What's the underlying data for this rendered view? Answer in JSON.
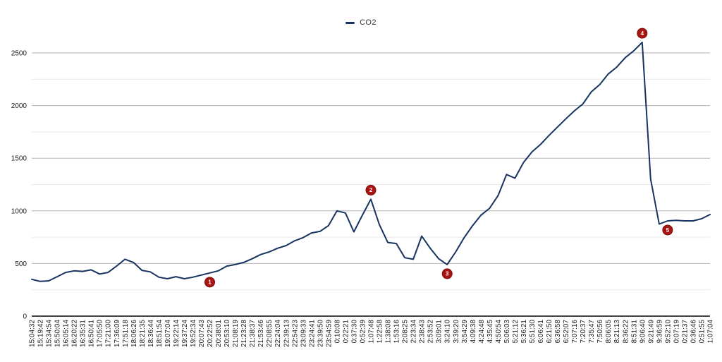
{
  "chart_data": {
    "type": "line",
    "title": "",
    "legend": {
      "position": "top-center",
      "entries": [
        {
          "label": "CO2",
          "color": "#17335f"
        }
      ]
    },
    "x": {
      "label": "",
      "categories": [
        "15:04:32",
        "15:19:42",
        "15:34:54",
        "15:50:04",
        "16:05:14",
        "16:20:22",
        "16:35:31",
        "16:50:41",
        "17:05:50",
        "17:21:00",
        "17:36:09",
        "17:51:18",
        "18:06:26",
        "18:21:35",
        "18:36:44",
        "18:51:54",
        "19:07:04",
        "19:22:14",
        "19:37:24",
        "19:52:34",
        "20:07:43",
        "20:22:52",
        "20:38:01",
        "20:53:10",
        "21:08:19",
        "21:23:28",
        "21:38:37",
        "21:53:46",
        "22:08:55",
        "22:24:04",
        "22:39:13",
        "22:54:23",
        "23:09:33",
        "23:24:41",
        "23:39:50",
        "23:54:59",
        "0:10:08",
        "0:22:21",
        "0:37:30",
        "0:52:39",
        "1:07:48",
        "1:22:58",
        "1:38:08",
        "1:53:16",
        "2:08:25",
        "2:23:34",
        "2:38:43",
        "2:53:52",
        "3:09:01",
        "3:24:10",
        "3:39:20",
        "3:54:29",
        "4:09:38",
        "4:24:48",
        "4:35:45",
        "4:50:54",
        "5:06:03",
        "5:21:12",
        "5:36:21",
        "5:51:30",
        "6:06:41",
        "6:21:50",
        "6:36:58",
        "6:52:07",
        "7:07:16",
        "7:20:37",
        "7:35:47",
        "7:50:56",
        "8:06:05",
        "8:21:13",
        "8:36:22",
        "8:51:31",
        "9:06:40",
        "9:21:49",
        "9:36:59",
        "9:52:10",
        "0:07:19",
        "0:21:37",
        "0:36:46",
        "0:51:55",
        "1:07:04"
      ]
    },
    "y": {
      "label": "",
      "min": 0,
      "max": 2500,
      "ticks": [
        0,
        500,
        1000,
        1500,
        2000,
        2500
      ],
      "minor_ticks": [
        250,
        750,
        1250,
        1750,
        2250
      ]
    },
    "series": [
      {
        "name": "CO2",
        "color": "#17335f",
        "values": [
          350,
          330,
          335,
          375,
          415,
          430,
          425,
          440,
          400,
          415,
          475,
          540,
          510,
          435,
          420,
          370,
          355,
          375,
          355,
          370,
          390,
          410,
          430,
          475,
          490,
          510,
          545,
          585,
          610,
          645,
          670,
          715,
          745,
          790,
          805,
          860,
          1000,
          980,
          800,
          960,
          1110,
          870,
          700,
          690,
          555,
          540,
          760,
          645,
          545,
          490,
          610,
          745,
          860,
          960,
          1025,
          1145,
          1345,
          1310,
          1460,
          1560,
          1630,
          1715,
          1795,
          1875,
          1950,
          2015,
          2130,
          2200,
          2300,
          2365,
          2455,
          2520,
          2600,
          1300,
          875,
          905,
          910,
          905,
          905,
          925,
          965
        ]
      }
    ],
    "annotations": [
      {
        "label": "1",
        "category": "20:22:52",
        "value": 410,
        "placement": "below"
      },
      {
        "label": "2",
        "category": "1:07:48",
        "value": 1110,
        "placement": "above"
      },
      {
        "label": "3",
        "category": "3:24:10",
        "value": 490,
        "placement": "below"
      },
      {
        "label": "4",
        "category": "9:06:40",
        "value": 2600,
        "placement": "above"
      },
      {
        "label": "5",
        "category": "9:52:10",
        "value": 905,
        "placement": "below"
      }
    ],
    "grid": "horizontal-major-and-minor",
    "colors": {
      "line": "#17335f",
      "marker_fill": "#a91411",
      "marker_border": "#7c0d0b",
      "marker_text": "#ffffff",
      "grid_major": "#b6b6b6",
      "grid_minor": "#e9e9e9",
      "axis_line": "#424242",
      "tick_text": "#1a1a1a"
    }
  }
}
